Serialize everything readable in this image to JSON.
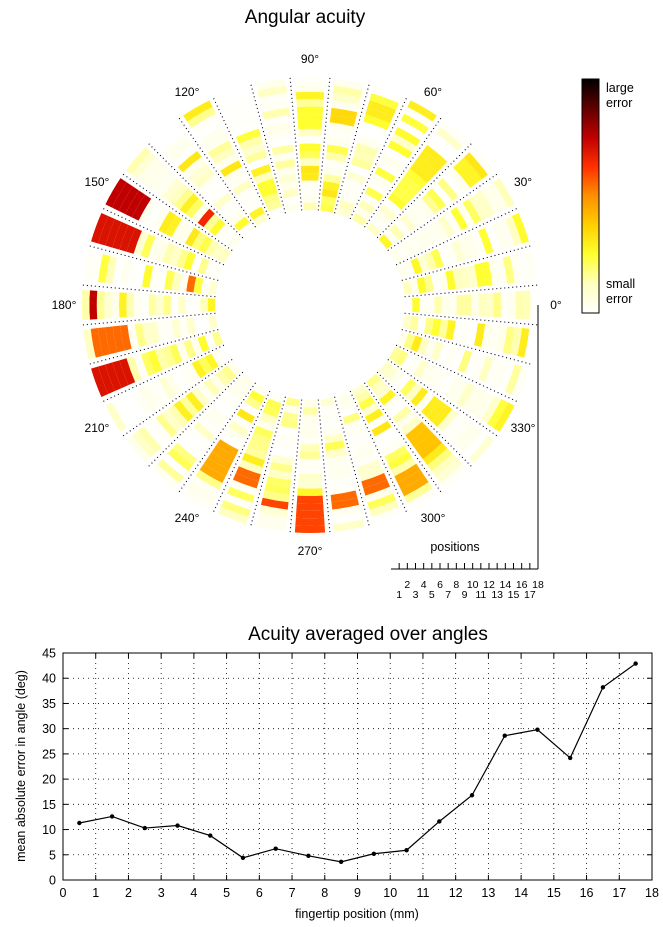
{
  "chart_data": [
    {
      "type": "heatmap",
      "subtype": "polar",
      "title": "Angular acuity",
      "angle_labels": [
        "0°",
        "30°",
        "60°",
        "90°",
        "120°",
        "150°",
        "180°",
        "210°",
        "240°",
        "270°",
        "300°",
        "330°"
      ],
      "n_angles": 36,
      "n_positions": 18,
      "position_axis_title": "positions",
      "position_ticks": [
        "1",
        "2",
        "3",
        "4",
        "5",
        "6",
        "7",
        "8",
        "9",
        "10",
        "11",
        "12",
        "13",
        "14",
        "15",
        "16",
        "17",
        "18"
      ],
      "colorbar": {
        "label_high": "large error",
        "label_low": "small error",
        "colors": [
          "#ffffff",
          "#ffffc0",
          "#ffff30",
          "#ffd000",
          "#ff9000",
          "#ff3000",
          "#c00000",
          "#600000",
          "#000000"
        ]
      },
      "hotspots": [
        {
          "angle": 80,
          "positions": [
            13,
            14
          ],
          "level": 0.35
        },
        {
          "angle": 90,
          "positions": [
            12,
            13,
            14
          ],
          "level": 0.25
        },
        {
          "angle": 70,
          "positions": [
            15,
            16
          ],
          "level": 0.3
        },
        {
          "angle": 50,
          "positions": [
            11,
            12,
            13,
            14
          ],
          "level": 0.3
        },
        {
          "angle": 40,
          "positions": [
            15,
            16
          ],
          "level": 0.28
        },
        {
          "angle": 140,
          "positions": [
            6
          ],
          "level": 0.65
        },
        {
          "angle": 150,
          "positions": [
            14,
            15,
            16,
            17,
            18
          ],
          "level": 0.75
        },
        {
          "angle": 160,
          "positions": [
            13,
            14,
            15,
            16,
            17,
            18
          ],
          "level": 0.7
        },
        {
          "angle": 170,
          "positions": [
            4
          ],
          "level": 0.55
        },
        {
          "angle": 180,
          "positions": [
            17
          ],
          "level": 0.75
        },
        {
          "angle": 190,
          "positions": [
            13,
            14,
            15,
            16,
            17
          ],
          "level": 0.55
        },
        {
          "angle": 200,
          "positions": [
            14,
            15,
            16,
            17,
            18
          ],
          "level": 0.7
        },
        {
          "angle": 240,
          "positions": [
            10,
            11,
            12,
            13,
            14
          ],
          "level": 0.45
        },
        {
          "angle": 250,
          "positions": [
            12,
            13
          ],
          "level": 0.55
        },
        {
          "angle": 260,
          "positions": [
            15
          ],
          "level": 0.6
        },
        {
          "angle": 270,
          "positions": [
            14,
            15,
            16,
            17,
            18
          ],
          "level": 0.6
        },
        {
          "angle": 280,
          "positions": [
            14,
            15
          ],
          "level": 0.55
        },
        {
          "angle": 290,
          "positions": [
            13,
            14
          ],
          "level": 0.55
        },
        {
          "angle": 300,
          "positions": [
            14,
            15,
            16
          ],
          "level": 0.45
        },
        {
          "angle": 310,
          "positions": [
            10,
            11,
            12,
            13
          ],
          "level": 0.4
        },
        {
          "angle": 320,
          "positions": [
            9,
            10,
            11
          ],
          "level": 0.3
        },
        {
          "angle": 350,
          "positions": [
            17
          ],
          "level": 0.3
        }
      ]
    },
    {
      "type": "line",
      "title": "Acuity averaged over angles",
      "xlabel": "fingertip position (mm)",
      "ylabel": "mean absolute error in angle (deg)",
      "xlim": [
        0,
        18
      ],
      "ylim": [
        0,
        45
      ],
      "xticks": [
        "0",
        "1",
        "2",
        "3",
        "4",
        "5",
        "6",
        "7",
        "8",
        "9",
        "10",
        "11",
        "12",
        "13",
        "14",
        "15",
        "16",
        "17",
        "18"
      ],
      "yticks": [
        "0",
        "5",
        "10",
        "15",
        "20",
        "25",
        "30",
        "35",
        "40",
        "45"
      ],
      "grid": true,
      "x": [
        0.5,
        1.5,
        2.5,
        3.5,
        4.5,
        5.5,
        6.5,
        7.5,
        8.5,
        9.5,
        10.5,
        11.5,
        12.5,
        13.5,
        14.5,
        15.5,
        16.5,
        17.5
      ],
      "y": [
        11.3,
        12.6,
        10.3,
        10.8,
        8.8,
        4.4,
        6.2,
        4.8,
        3.6,
        5.2,
        5.9,
        11.6,
        16.8,
        28.6,
        29.8,
        24.2,
        38.2,
        42.9
      ]
    }
  ]
}
